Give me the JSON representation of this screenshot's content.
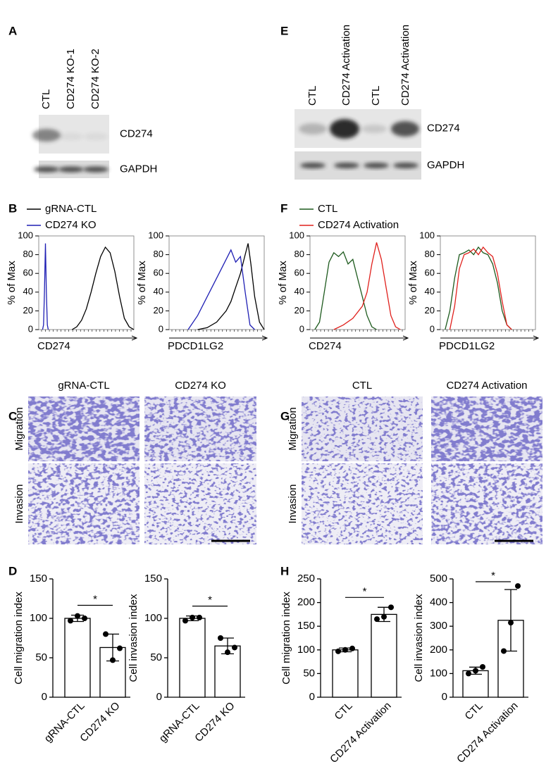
{
  "blots": {
    "A": {
      "letter": "A",
      "lanes": [
        "CTL",
        "CD274 KO-1",
        "CD274 KO-2"
      ],
      "rows": [
        "CD274",
        "GAPDH"
      ]
    },
    "E": {
      "letter": "E",
      "lanes": [
        "CTL",
        "CD274 Activation",
        "CTL",
        "CD274 Activation"
      ],
      "rows": [
        "CD274",
        "GAPDH"
      ]
    }
  },
  "images": {
    "C": {
      "letter": "C",
      "columns": [
        "gRNA-CTL",
        "CD274 KO"
      ],
      "rows": [
        "Migration",
        "Invasion"
      ]
    },
    "G": {
      "letter": "G",
      "columns": [
        "CTL",
        "CD274 Activation"
      ],
      "rows": [
        "Migration",
        "Invasion"
      ]
    }
  },
  "chart_data": [
    {
      "type": "line",
      "letter": "B",
      "ylabel": "% of Max",
      "xlabel": "CD274",
      "xlim": [
        0,
        100
      ],
      "ylim": [
        0,
        100
      ],
      "yticks": [
        0,
        20,
        40,
        60,
        80,
        100
      ],
      "series": [
        {
          "name": "gRNA-CTL",
          "color": "#000000",
          "x": [
            35,
            40,
            45,
            50,
            55,
            60,
            65,
            70,
            75,
            80,
            85,
            90,
            95,
            100
          ],
          "values": [
            0,
            3,
            10,
            22,
            40,
            60,
            78,
            88,
            82,
            62,
            35,
            12,
            3,
            0
          ]
        },
        {
          "name": "CD274 KO",
          "color": "#1f1fb4",
          "x": [
            4,
            5,
            6,
            7,
            8,
            9,
            10
          ],
          "values": [
            0,
            5,
            40,
            92,
            40,
            5,
            0
          ]
        }
      ]
    },
    {
      "type": "line",
      "ylabel": "% of Max",
      "xlabel": "PDCD1LG2",
      "xlim": [
        0,
        100
      ],
      "ylim": [
        0,
        100
      ],
      "yticks": [
        0,
        20,
        40,
        60,
        80,
        100
      ],
      "series": [
        {
          "color": "#000000",
          "x": [
            30,
            40,
            50,
            60,
            65,
            70,
            75,
            80,
            83,
            86,
            90,
            95,
            100
          ],
          "values": [
            0,
            2,
            8,
            20,
            30,
            45,
            60,
            80,
            92,
            70,
            35,
            8,
            0
          ]
        },
        {
          "color": "#1f1fb4",
          "x": [
            20,
            30,
            40,
            50,
            55,
            60,
            65,
            70,
            75,
            80,
            85,
            90
          ],
          "values": [
            0,
            15,
            35,
            55,
            65,
            75,
            85,
            72,
            78,
            40,
            5,
            0
          ]
        }
      ]
    },
    {
      "type": "line",
      "letter": "F",
      "ylabel": "% of Max",
      "xlabel": "CD274",
      "xlim": [
        0,
        100
      ],
      "ylim": [
        0,
        100
      ],
      "yticks": [
        0,
        20,
        40,
        60,
        80,
        100
      ],
      "series": [
        {
          "name": "CTL",
          "color": "#1d5a1d",
          "x": [
            5,
            10,
            15,
            20,
            25,
            30,
            35,
            40,
            45,
            50,
            55,
            60,
            65,
            70
          ],
          "values": [
            0,
            8,
            40,
            72,
            82,
            78,
            83,
            70,
            75,
            55,
            35,
            15,
            3,
            0
          ]
        },
        {
          "name": "CD274 Activation",
          "color": "#e0201c",
          "x": [
            25,
            35,
            45,
            55,
            60,
            65,
            70,
            75,
            80,
            85,
            90,
            95
          ],
          "values": [
            0,
            5,
            12,
            25,
            40,
            70,
            93,
            75,
            45,
            15,
            3,
            0
          ]
        }
      ]
    },
    {
      "type": "line",
      "ylabel": "% of Max",
      "xlabel": "PDCD1LG2",
      "xlim": [
        0,
        100
      ],
      "ylim": [
        0,
        100
      ],
      "yticks": [
        0,
        20,
        40,
        60,
        80,
        100
      ],
      "series": [
        {
          "color": "#1d5a1d",
          "x": [
            5,
            10,
            15,
            20,
            25,
            30,
            35,
            40,
            45,
            50,
            55,
            60,
            65,
            70,
            75
          ],
          "values": [
            0,
            20,
            55,
            80,
            82,
            85,
            80,
            88,
            82,
            80,
            70,
            50,
            20,
            5,
            0
          ]
        },
        {
          "color": "#e0201c",
          "x": [
            10,
            15,
            20,
            25,
            30,
            35,
            40,
            45,
            50,
            55,
            60,
            65,
            70,
            75
          ],
          "values": [
            0,
            25,
            65,
            80,
            82,
            86,
            80,
            88,
            82,
            78,
            60,
            30,
            5,
            0
          ]
        }
      ]
    },
    {
      "type": "bar",
      "letter": "D",
      "ylabel": "Cell migration index",
      "categories": [
        "gRNA-CTL",
        "CD274 KO"
      ],
      "values": [
        100,
        63
      ],
      "errors": [
        4,
        17
      ],
      "points": [
        [
          97,
          103,
          100
        ],
        [
          80,
          47,
          62
        ]
      ],
      "ylim": [
        0,
        150
      ],
      "yticks": [
        0,
        50,
        100,
        150
      ],
      "annotation": "*"
    },
    {
      "type": "bar",
      "ylabel": "Cell invasion index",
      "categories": [
        "gRNA-CTL",
        "CD274 KO"
      ],
      "values": [
        100,
        65
      ],
      "errors": [
        3,
        10
      ],
      "points": [
        [
          97,
          101,
          101
        ],
        [
          75,
          57,
          63
        ]
      ],
      "ylim": [
        0,
        150
      ],
      "yticks": [
        0,
        50,
        100,
        150
      ],
      "annotation": "*"
    },
    {
      "type": "bar",
      "letter": "H",
      "ylabel": "Cell migration index",
      "categories": [
        "CTL",
        "CD274 Activation"
      ],
      "values": [
        100,
        175
      ],
      "errors": [
        4,
        15
      ],
      "points": [
        [
          97,
          100,
          103
        ],
        [
          165,
          170,
          190
        ]
      ],
      "ylim": [
        0,
        250
      ],
      "yticks": [
        0,
        50,
        100,
        150,
        200,
        250
      ],
      "annotation": "*"
    },
    {
      "type": "bar",
      "ylabel": "Cell invasion index",
      "categories": [
        "CTL",
        "CD274 Activation"
      ],
      "values": [
        112,
        325
      ],
      "errors": [
        15,
        130
      ],
      "points": [
        [
          100,
          112,
          128
        ],
        [
          195,
          315,
          470
        ]
      ],
      "ylim": [
        0,
        500
      ],
      "yticks": [
        0,
        100,
        200,
        300,
        400,
        500
      ],
      "annotation": "*"
    }
  ]
}
